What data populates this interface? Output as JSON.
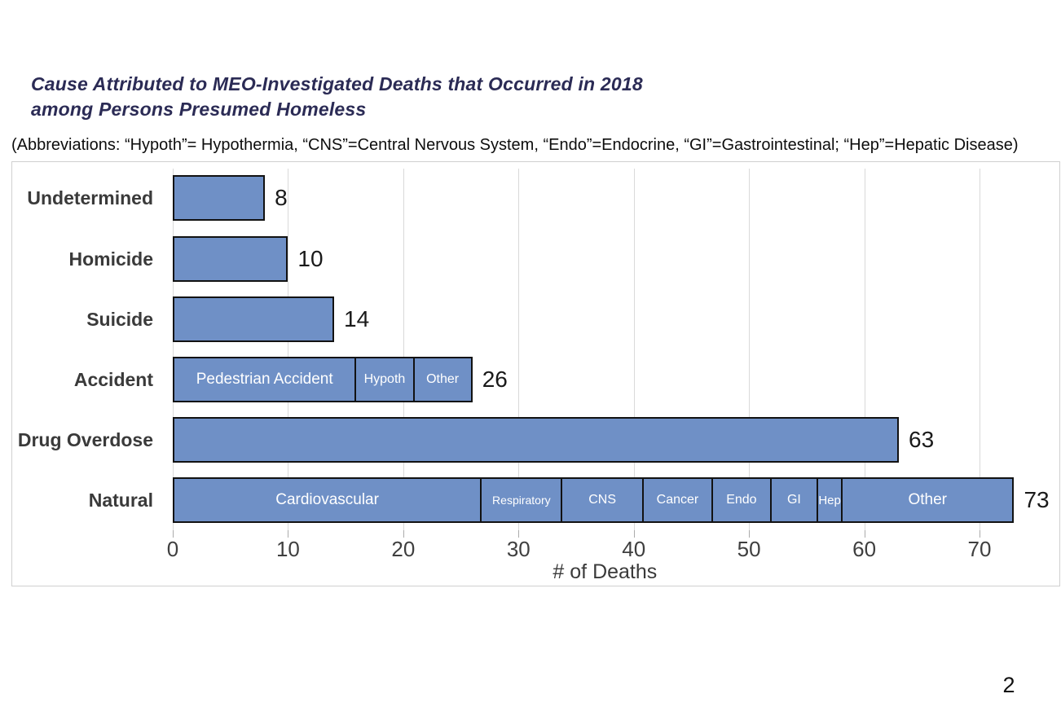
{
  "title": "Cause Attributed to MEO-Investigated Deaths that Occurred in 2018\namong Persons Presumed Homeless",
  "abbreviations": "(Abbreviations: “Hypoth”= Hypothermia, “CNS”=Central Nervous System, “Endo”=Endocrine, “GI”=Gastrointestinal; “Hep”=Hepatic Disease)",
  "page_number": "2",
  "colors": {
    "bar_fill": "#6f90c6",
    "bar_border": "#121212",
    "segment_text": "#ffffff",
    "title_text": "#2b2b55",
    "abbrev_text": "#0d0d0d",
    "category_label": "#3a3a3a",
    "value_label": "#1a1a1a",
    "tick_label": "#3f3f3f",
    "axis_title": "#3a3a3a",
    "gridline": "#d9d9d9",
    "tick_mark": "#ababab",
    "chart_border": "#d0d0d0",
    "page_number_text": "#111111"
  },
  "chart_data": {
    "type": "bar",
    "orientation": "horizontal",
    "title": "Cause Attributed to MEO-Investigated Deaths that Occurred in 2018 among Persons Presumed Homeless",
    "xlabel": "# of Deaths",
    "ylabel": "",
    "xlim": [
      0,
      75
    ],
    "xticks": [
      0,
      10,
      20,
      30,
      40,
      50,
      60,
      70
    ],
    "grid": true,
    "legend": "none",
    "categories": [
      "Undetermined",
      "Homicide",
      "Suicide",
      "Accident",
      "Drug Overdose",
      "Natural"
    ],
    "totals": [
      8,
      10,
      14,
      26,
      63,
      73
    ],
    "bars": [
      {
        "category": "Undetermined",
        "total": 8,
        "segments": [
          {
            "label": "",
            "value": 8
          }
        ]
      },
      {
        "category": "Homicide",
        "total": 10,
        "segments": [
          {
            "label": "",
            "value": 10
          }
        ]
      },
      {
        "category": "Suicide",
        "total": 14,
        "segments": [
          {
            "label": "",
            "value": 14
          }
        ]
      },
      {
        "category": "Accident",
        "total": 26,
        "segments": [
          {
            "label": "Pedestrian Accident",
            "value": 16
          },
          {
            "label": "Hypoth",
            "value": 5
          },
          {
            "label": "Other",
            "value": 5
          }
        ]
      },
      {
        "category": "Drug Overdose",
        "total": 63,
        "segments": [
          {
            "label": "",
            "value": 63
          }
        ]
      },
      {
        "category": "Natural",
        "total": 73,
        "segments": [
          {
            "label": "Cardiovascular",
            "value": 27
          },
          {
            "label": "Respiratory",
            "value": 7
          },
          {
            "label": "CNS",
            "value": 7
          },
          {
            "label": "Cancer",
            "value": 6
          },
          {
            "label": "Endo",
            "value": 5
          },
          {
            "label": "GI",
            "value": 4
          },
          {
            "label": "Hep",
            "value": 2
          },
          {
            "label": "Other",
            "value": 15
          }
        ]
      }
    ]
  }
}
